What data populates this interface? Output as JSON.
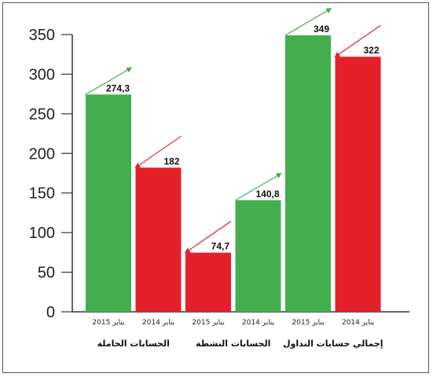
{
  "chart_data": {
    "type": "bar",
    "ylim": [
      0,
      350
    ],
    "yticks": [
      "0",
      "50",
      "100",
      "150",
      "200",
      "250",
      "300",
      "350"
    ],
    "groups": [
      {
        "label": "الحسابات الخاملة",
        "bars": [
          {
            "category": "يناير 2015",
            "value": 274.3,
            "value_label": "274,3",
            "color": "#44ad4e",
            "trend": "up"
          },
          {
            "category": "يناير 2014",
            "value": 182,
            "value_label": "182",
            "color": "#e4212a",
            "trend": "down"
          }
        ]
      },
      {
        "label": "الحسابات النشطة",
        "bars": [
          {
            "category": "يناير 2015",
            "value": 74.7,
            "value_label": "74,7",
            "color": "#e4212a",
            "trend": "down"
          },
          {
            "category": "يناير 2014",
            "value": 140.8,
            "value_label": "140,8",
            "color": "#44ad4e",
            "trend": "up"
          }
        ]
      },
      {
        "label": "إجمالي حسابات التداول",
        "bars": [
          {
            "category": "يناير 2015",
            "value": 349,
            "value_label": "349",
            "color": "#44ad4e",
            "trend": "up"
          },
          {
            "category": "يناير 2014",
            "value": 322,
            "value_label": "322",
            "color": "#e4212a",
            "trend": "down"
          }
        ]
      }
    ],
    "grid": false,
    "legend": "none"
  }
}
